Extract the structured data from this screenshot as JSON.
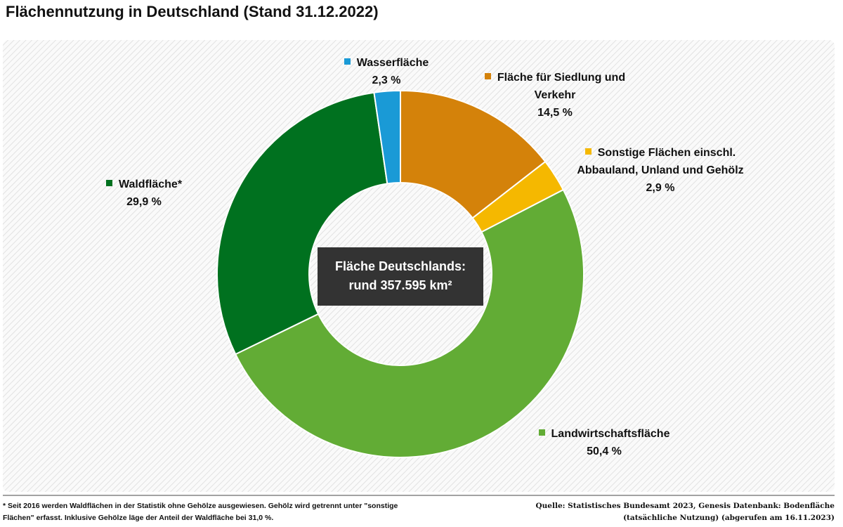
{
  "chart_data": {
    "type": "donut",
    "title": "Flächennutzung in Deutschland (Stand 31.12.2022)",
    "categories": [
      "Fläche für Siedlung und Verkehr",
      "Sonstige Flächen einschl. Abbauland, Unland und Gehölz",
      "Landwirtschaftsfläche",
      "Waldfläche*",
      "Wasserfläche"
    ],
    "values": [
      14.5,
      2.9,
      50.4,
      29.9,
      2.3
    ],
    "value_labels": [
      "14,5 %",
      "2,9 %",
      "50,4 %",
      "29,9 %",
      "2,3 %"
    ],
    "colors": [
      "#d4820a",
      "#f5b800",
      "#62ac35",
      "#00711f",
      "#1a9ad6"
    ],
    "center_label": [
      "Fläche Deutschlands:",
      "rund 357.595 km²"
    ],
    "footnote": "* Seit 2016 werden Waldflächen in der Statistik ohne Gehölze ausgewiesen. Gehölz wird getrennt unter \"sonstige Flächen\" erfasst. Inklusive Gehölze läge der Anteil der Waldfläche bei 31,0 %.",
    "source": "Quelle: Statistisches Bundesamt 2023, Genesis Datenbank: Bodenfläche (tatsächliche Nutzung) (abgerufen am 16.11.2023)"
  }
}
